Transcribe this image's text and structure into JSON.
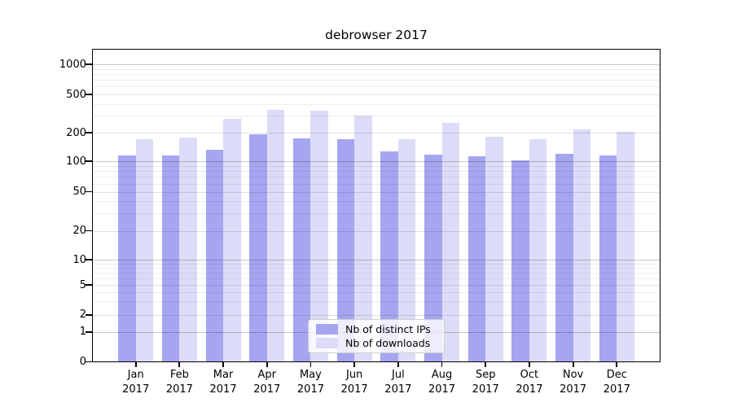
{
  "figure": {
    "title": "debrowser 2017"
  },
  "chart_data": {
    "type": "bar",
    "title": "debrowser 2017",
    "categories": [
      "Jan",
      "Feb",
      "Mar",
      "Apr",
      "May",
      "Jun",
      "Jul",
      "Aug",
      "Sep",
      "Oct",
      "Nov",
      "Dec"
    ],
    "category_year": "2017",
    "series": [
      {
        "name": "Nb of distinct IPs",
        "color": "#a5a5f0",
        "values": [
          116,
          116,
          132,
          192,
          174,
          172,
          127,
          119,
          113,
          103,
          120,
          116
        ]
      },
      {
        "name": "Nb of downloads",
        "color": "#dcdcf8",
        "values": [
          172,
          179,
          282,
          345,
          339,
          304,
          172,
          253,
          183,
          172,
          216,
          206
        ]
      }
    ],
    "yscale": "symlog",
    "yticks": [
      0,
      1,
      2,
      5,
      10,
      20,
      50,
      100,
      200,
      500,
      1000
    ],
    "ylim": [
      0,
      1400
    ],
    "grid": true,
    "legend_position": "lower center",
    "axis_color": "#000000",
    "background": "#ffffff"
  }
}
